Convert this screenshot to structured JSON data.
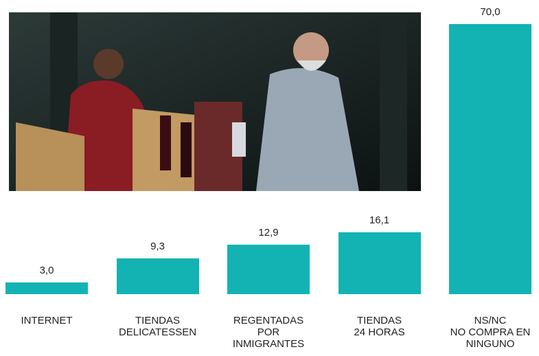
{
  "chart_data": {
    "type": "bar",
    "categories": [
      "INTERNET",
      "TIENDAS\nDELICATESSEN",
      "REGENTADAS\nPOR\nINMIGRANTES",
      "TIENDAS\n24 HORAS",
      "NS/NC\nNO COMPRA EN\nNINGUNO"
    ],
    "values": [
      3.0,
      9.3,
      12.9,
      16.1,
      70.0
    ],
    "value_labels": [
      "3,0",
      "9,3",
      "12,9",
      "16,1",
      "70,0"
    ],
    "color": "#13b3b3"
  }
}
